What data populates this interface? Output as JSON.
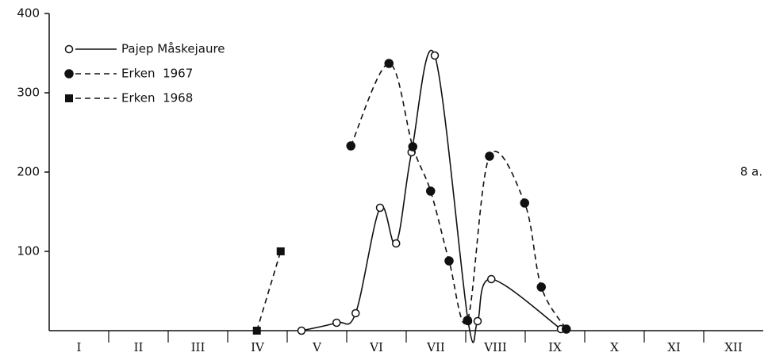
{
  "chart_data": {
    "type": "line",
    "annotation": "8 a.",
    "xlim": [
      0,
      12
    ],
    "xticks": [
      {
        "value": 0.5,
        "label": "I"
      },
      {
        "value": 1.5,
        "label": "II"
      },
      {
        "value": 2.5,
        "label": "III"
      },
      {
        "value": 3.5,
        "label": "IV"
      },
      {
        "value": 4.5,
        "label": "V"
      },
      {
        "value": 5.5,
        "label": "VI"
      },
      {
        "value": 6.5,
        "label": "VII"
      },
      {
        "value": 7.5,
        "label": "VIII"
      },
      {
        "value": 8.5,
        "label": "IX"
      },
      {
        "value": 9.5,
        "label": "X"
      },
      {
        "value": 10.5,
        "label": "XI"
      },
      {
        "value": 11.5,
        "label": "XII"
      }
    ],
    "ylim": [
      0,
      400
    ],
    "yticks": [
      100,
      200,
      300,
      400
    ],
    "legend": "upper left",
    "series": [
      {
        "name": "Pajep Måskejaure",
        "color": "#111111",
        "linestyle": "solid",
        "marker": "open-circle",
        "x": [
          4.24,
          4.83,
          5.15,
          5.56,
          5.83,
          6.09,
          6.48,
          7.04,
          7.2,
          7.43,
          8.6
        ],
        "values": [
          0,
          10,
          22,
          155,
          110,
          225,
          347,
          12,
          12,
          65,
          2
        ]
      },
      {
        "name": "Erken  1967",
        "color": "#111111",
        "linestyle": "dashed",
        "marker": "filled-circle",
        "x": [
          5.07,
          5.71,
          6.11,
          6.41,
          6.72,
          7.03,
          7.4,
          7.99,
          8.27,
          8.69
        ],
        "values": [
          233,
          337,
          232,
          176,
          88,
          13,
          220,
          161,
          55,
          2
        ]
      },
      {
        "name": "Erken  1968",
        "color": "#111111",
        "linestyle": "dashed",
        "marker": "filled-square",
        "x": [
          3.49,
          3.89
        ],
        "values": [
          0,
          100
        ]
      }
    ]
  }
}
